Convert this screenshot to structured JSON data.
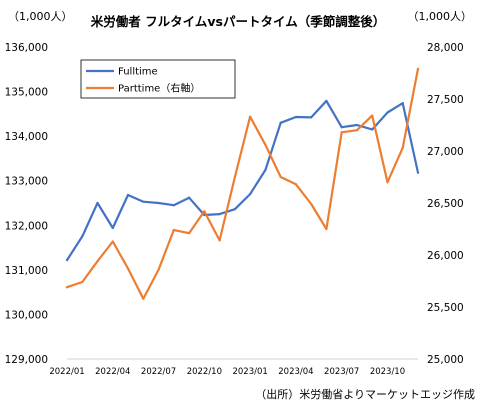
{
  "chart_data": {
    "type": "line",
    "title": "米労働者 フルタイムvsパートタイム（季節調整後）",
    "left_unit": "（1,000人）",
    "right_unit": "（1,000人）",
    "source": "（出所）米労働省よりマーケットエッジ作成",
    "x": [
      "2022/01",
      "2022/02",
      "2022/03",
      "2022/04",
      "2022/05",
      "2022/06",
      "2022/07",
      "2022/08",
      "2022/09",
      "2022/10",
      "2022/11",
      "2022/12",
      "2023/01",
      "2023/02",
      "2023/03",
      "2023/04",
      "2023/05",
      "2023/06",
      "2023/07",
      "2023/08",
      "2023/09",
      "2023/10",
      "2023/11",
      "2023/12"
    ],
    "x_tick_labels": [
      "2022/01",
      "2022/04",
      "2022/07",
      "2022/10",
      "2023/01",
      "2023/04",
      "2023/07",
      "2023/10"
    ],
    "y_left": {
      "min": 129000,
      "max": 136000,
      "step": 1000,
      "ticks": [
        "129,000",
        "130,000",
        "131,000",
        "132,000",
        "133,000",
        "134,000",
        "135,000",
        "136,000"
      ]
    },
    "y_right": {
      "min": 25000,
      "max": 28000,
      "step": 500,
      "ticks": [
        "25,000",
        "25,500",
        "26,000",
        "26,500",
        "27,000",
        "27,500",
        "28,000"
      ]
    },
    "series": [
      {
        "name": "Fulltime",
        "axis": "left",
        "color": "#4472C4",
        "values": [
          131220,
          131750,
          132500,
          131940,
          132680,
          132530,
          132500,
          132450,
          132620,
          132230,
          132250,
          132360,
          132700,
          133240,
          134300,
          134430,
          134420,
          134790,
          134200,
          134250,
          134150,
          134530,
          134740,
          133180
        ]
      },
      {
        "name": "Parttime（右軸）",
        "axis": "right",
        "color": "#ED7D31",
        "values": [
          25690,
          25740,
          25940,
          26130,
          25870,
          25580,
          25860,
          26240,
          26210,
          26420,
          26140,
          26750,
          27330,
          27060,
          26750,
          26680,
          26490,
          26250,
          27180,
          27200,
          27340,
          26700,
          27030,
          27790
        ]
      }
    ],
    "grid": false,
    "legend_position": "top-left"
  }
}
